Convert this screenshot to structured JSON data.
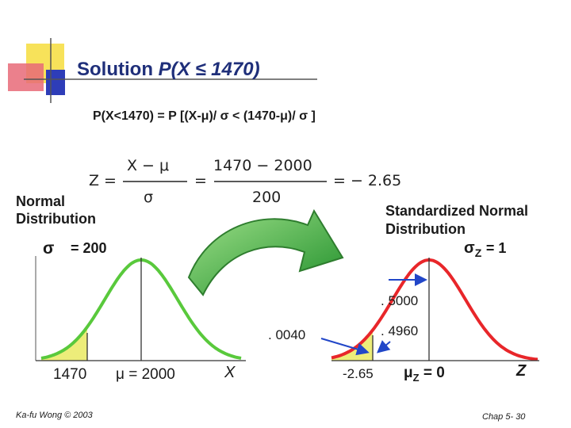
{
  "slide": {
    "title_prefix": "Solution ",
    "title_math": "P(X ≤ 1470)",
    "probability_statement": "P(X<1470) = P [(X-μ)/ σ < (1470-μ)/ σ ]"
  },
  "formula": {
    "z_lhs": "Z =",
    "numerator_symbolic": "X − μ",
    "denominator_symbolic": "σ",
    "equals": "=",
    "numerator_values": "1470  − 2000",
    "denominator_value": "200",
    "result": "= − 2.65"
  },
  "normal_panel": {
    "label_line1": "Normal",
    "label_line2": "Distribution",
    "sigma_symbol": "σ",
    "sigma_value": "= 200",
    "x_value_label": "1470",
    "mean_label": "μ  = 2000",
    "axis_label": "X",
    "curve_color": "#59c93c",
    "fill_color": "#eded7a"
  },
  "standard_panel": {
    "label_line1": "Standardized Normal",
    "label_line2": "Distribution",
    "sigma_label": "σ",
    "sigma_subscript": "Z",
    "sigma_value": "= 1",
    "half_area": ". 5000",
    "tail_area": ". 0040",
    "between_area": ". 4960",
    "z_value_label": "-2.65",
    "mean_label": "μ",
    "mean_subscript": "Z",
    "mean_value": "= 0",
    "axis_label": "Z",
    "curve_color": "#e8262a",
    "fill_color": "#eded7a",
    "area_arrow_color": "#2146c8"
  },
  "transition_arrow_color": "#3aa63a",
  "footer": {
    "author": "Ka-fu Wong © 2003",
    "page": "Chap 5- 30"
  }
}
